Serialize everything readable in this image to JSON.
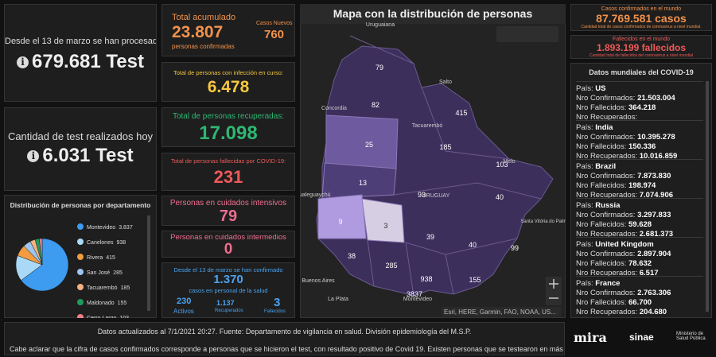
{
  "left": {
    "procesado_label": "Desde el 13 de marzo se han procesado",
    "procesado_value": "679.681 Test",
    "hoy_label": "Cantidad de test realizados hoy",
    "hoy_value": "6.031 Test"
  },
  "pie": {
    "title": "Distribución de personas por departamento",
    "categories": [
      "Montevideo",
      "Canelones",
      "Rivera",
      "San José",
      "Tacuarembó",
      "Maldonado",
      "Cerro Largo"
    ],
    "values": [
      3837,
      938,
      415,
      285,
      185,
      155,
      103
    ],
    "value_labels": [
      "3.837",
      "938",
      "415",
      "285",
      "185",
      "155",
      "103"
    ],
    "colors": [
      "#3d9bf0",
      "#a9d9f7",
      "#f29c3f",
      "#9cc5ef",
      "#f5b182",
      "#1f9a5e",
      "#ef7f86"
    ]
  },
  "stats": {
    "acumulado": {
      "label": "Total acumulado",
      "value": "23.807",
      "sub": "personas confirmadas",
      "nuevos_label": "Casos Nuevos",
      "nuevos_value": "760"
    },
    "en_curso": {
      "label": "Total de personas con infección en curso:",
      "value": "6.478"
    },
    "recuperadas": {
      "label": "Total de personas recuperadas:",
      "value": "17.098"
    },
    "fallecidas": {
      "label": "Total de personas fallecidas por COVID-19:",
      "value": "231"
    },
    "intensivos": {
      "label": "Personas en cuidados intensivos",
      "value": "79"
    },
    "intermedios": {
      "label": "Personas en cuidados intermedios",
      "value": "0"
    },
    "salud": {
      "label": "Desde el 13 de marzo se han confirmado",
      "value": "1.370",
      "sub": "casos en personal de la salud",
      "activos_value": "230",
      "activos_label": "Activos",
      "recuperados_value": "1.137",
      "recuperados_label": "Recuperados",
      "fallecidos_value": "3",
      "fallecidos_label": "Fallecidos"
    }
  },
  "map": {
    "title": "Mapa con la distribución de personas",
    "departments": [
      79,
      82,
      415,
      25,
      185,
      103,
      13,
      93,
      40,
      9,
      3,
      39,
      40,
      99,
      38,
      285,
      938,
      155,
      3837
    ],
    "places": [
      "Uruguaiana",
      "Concordia",
      "Tacuarembó",
      "Salto",
      "Gualeguaychú",
      "Melo",
      "URUGUAY",
      "Santa Vitória do Palmar",
      "Buenos Aires",
      "La Plata",
      "Montevideo"
    ],
    "attribution": "Esri, HERE, Garmin, FAO, NOAA, US..."
  },
  "world": {
    "casos_label": "Casos confirmados en el mundo",
    "casos_value": "87.769.581 casos",
    "casos_note": "Cantidad total de casos confirmados de coronavirus a nivel mundial.",
    "fallecidos_label": "Fallecidos en el mundo",
    "fallecidos_value": "1.893.199 fallecidos",
    "fallecidos_note": "Cantidad total de fallecidos del coronavirus a nivel mundial"
  },
  "countries": {
    "title": "Datos mundiales del COVID-19",
    "labels": {
      "pais": "País:",
      "confirmados": "Nro Confirmados:",
      "fallecidos": "Nro Fallecidos:",
      "recuperados": "Nro Recuperados:"
    },
    "rows": [
      {
        "pais": "US",
        "confirmados": "21.503.004",
        "fallecidos": "364.218"
      },
      {
        "pais": "India",
        "confirmados": "10.395.278",
        "fallecidos": "150.336",
        "recuperados": "10.016.859"
      },
      {
        "pais": "Brazil",
        "confirmados": "7.873.830",
        "fallecidos": "198.974",
        "recuperados": "7.074.906"
      },
      {
        "pais": "Russia",
        "confirmados": "3.297.833",
        "fallecidos": "59.628",
        "recuperados": "2.681.373"
      },
      {
        "pais": "United Kingdom",
        "confirmados": "2.897.904",
        "fallecidos": "78.632",
        "recuperados": "6.517"
      },
      {
        "pais": "France",
        "confirmados": "2.763.306",
        "fallecidos": "66.700",
        "recuperados": "204.680"
      }
    ]
  },
  "footer": {
    "line1": "Datos actualizados al 7/1/2021 20:27. Fuente: Departamento de vigilancia en salud. División epidemiología del M.S.P.",
    "line2": "Cabe aclarar que la cifra de casos confirmados corresponde a personas que se hicieron el test, con resultado positivo de Covid 19. Existen personas que se testearon en más"
  },
  "logos": {
    "mira": "mira",
    "sinae": "sinae",
    "msp": "Ministerio de Salud Pública"
  }
}
